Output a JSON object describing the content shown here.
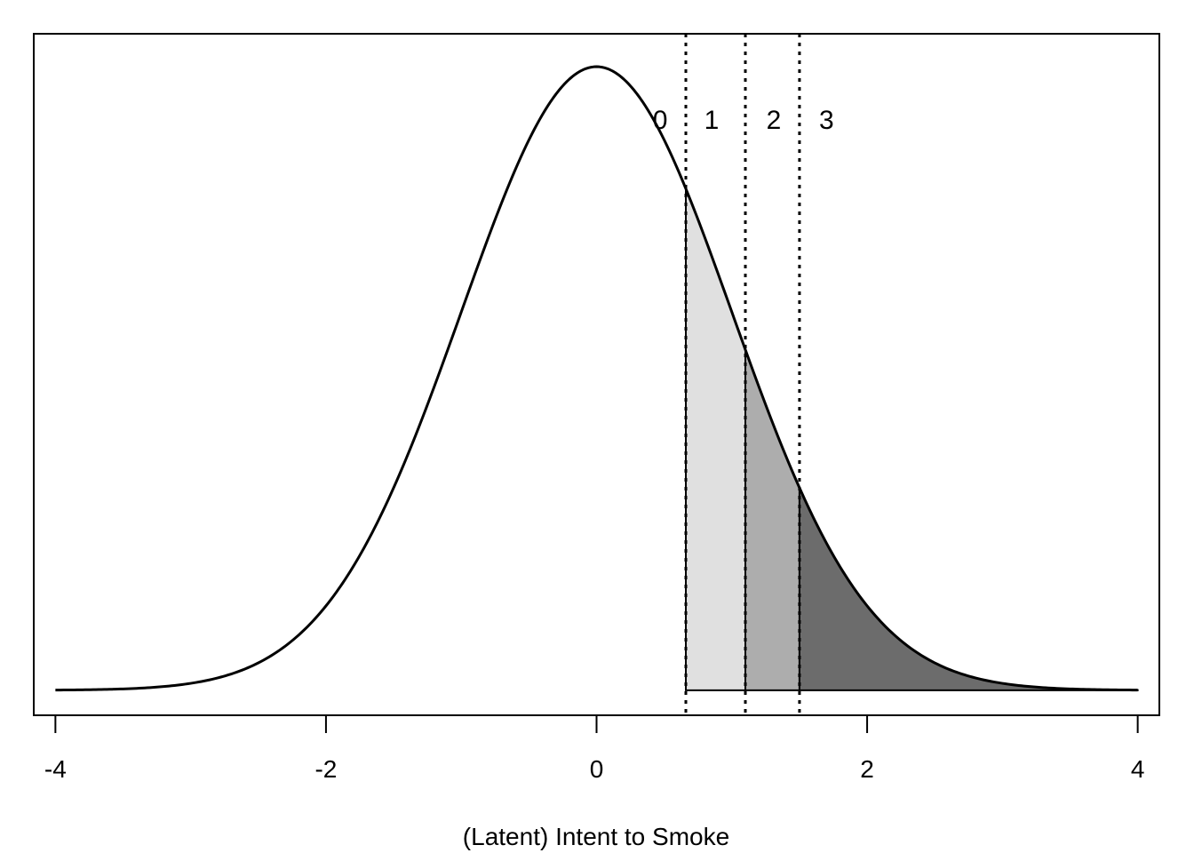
{
  "chart_data": {
    "type": "area",
    "title": "",
    "xlabel": "(Latent) Intent to Smoke",
    "ylabel": "",
    "xlim": [
      -4.16,
      4.16
    ],
    "ylim": [
      -0.016,
      0.42
    ],
    "xticks": [
      {
        "value": -4,
        "label": "-4"
      },
      {
        "value": -2,
        "label": "-2"
      },
      {
        "value": 0,
        "label": "0"
      },
      {
        "value": 2,
        "label": "2"
      },
      {
        "value": 4,
        "label": "4"
      }
    ],
    "curve": {
      "distribution": "standard normal density",
      "mean": 0,
      "sd": 1,
      "x_range": [
        -4,
        4
      ]
    },
    "thresholds": [
      0.66,
      1.1,
      1.5
    ],
    "regions": [
      {
        "label": "0",
        "from": -4,
        "to": 0.66,
        "fill": "none"
      },
      {
        "label": "1",
        "from": 0.66,
        "to": 1.1,
        "fill": "#e0e0e0"
      },
      {
        "label": "2",
        "from": 1.1,
        "to": 1.5,
        "fill": "#adadad"
      },
      {
        "label": "3",
        "from": 1.5,
        "to": 4,
        "fill": "#6c6c6c"
      }
    ],
    "category_labels": [
      {
        "label": "0",
        "x": 0.47
      },
      {
        "label": "1",
        "x": 0.85
      },
      {
        "label": "2",
        "x": 1.31
      },
      {
        "label": "3",
        "x": 1.7
      }
    ],
    "category_label_y": 0.365,
    "grid": false,
    "legend": "none"
  }
}
